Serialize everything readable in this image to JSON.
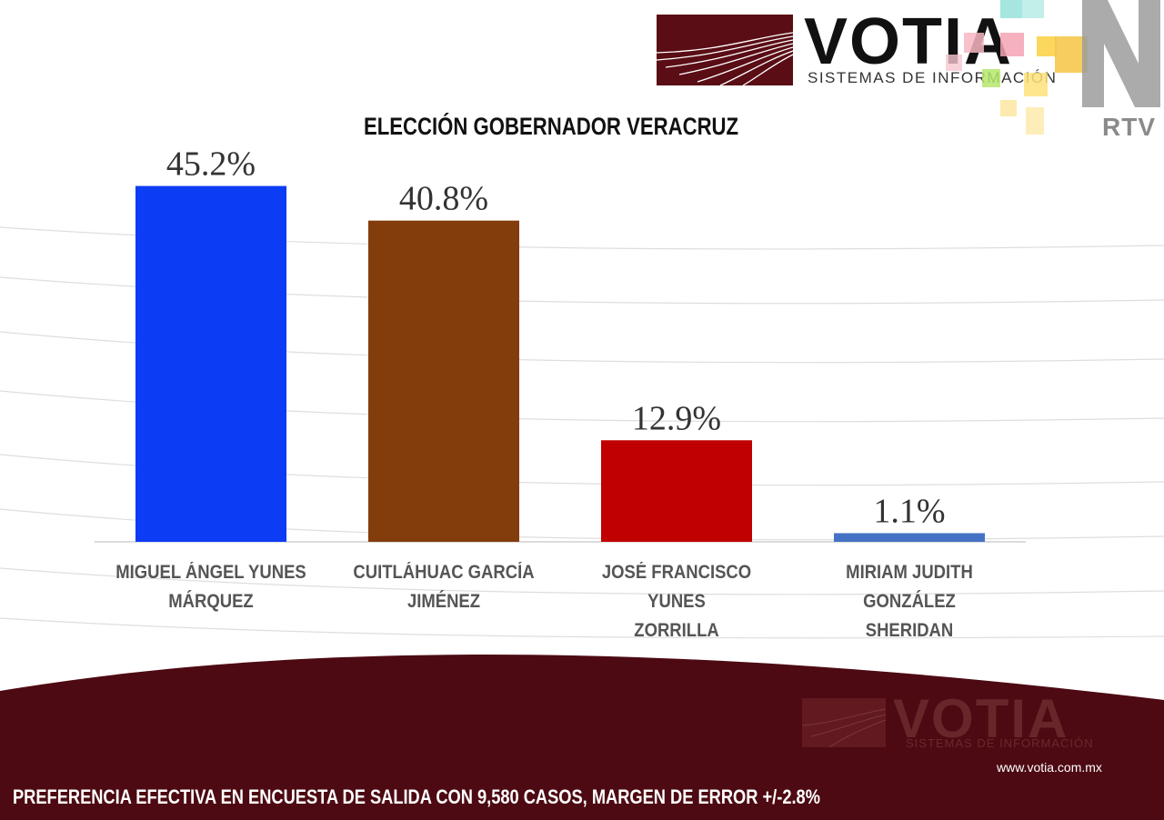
{
  "brand": {
    "name": "VOTIA",
    "subtitle": "SISTEMAS DE INFORMACIÓN",
    "broadcaster": "RTV",
    "url": "www.votia.com.mx",
    "primary_color": "#4d0a12"
  },
  "footnote": "PREFERENCIA EFECTIVA EN ENCUESTA DE SALIDA  CON 9,580 CASOS, MARGEN DE ERROR +/-2.8%",
  "chart_data": {
    "type": "bar",
    "title": "ELECCIÓN GOBERNADOR VERACRUZ",
    "xlabel": "",
    "ylabel": "",
    "ylim": [
      0,
      50
    ],
    "grid": false,
    "categories": [
      "MIGUEL ÁNGEL YUNES MÁRQUEZ",
      "CUITLÁHUAC GARCÍA JIMÉNEZ",
      "JOSÉ FRANCISCO YUNES ZORRILLA",
      "MIRIAM JUDITH GONZÁLEZ SHERIDAN"
    ],
    "category_lines": [
      [
        "MIGUEL ÁNGEL YUNES",
        "MÁRQUEZ"
      ],
      [
        "CUITLÁHUAC GARCÍA",
        "JIMÉNEZ"
      ],
      [
        "JOSÉ FRANCISCO YUNES",
        "ZORRILLA"
      ],
      [
        "MIRIAM JUDITH GONZÁLEZ",
        "SHERIDAN"
      ]
    ],
    "values": [
      45.2,
      40.8,
      12.9,
      1.1
    ],
    "data_labels": [
      "45.2%",
      "40.8%",
      "12.9%",
      "1.1%"
    ],
    "colors": [
      "#0d3cf5",
      "#833c0c",
      "#c00000",
      "#4472c4"
    ]
  }
}
